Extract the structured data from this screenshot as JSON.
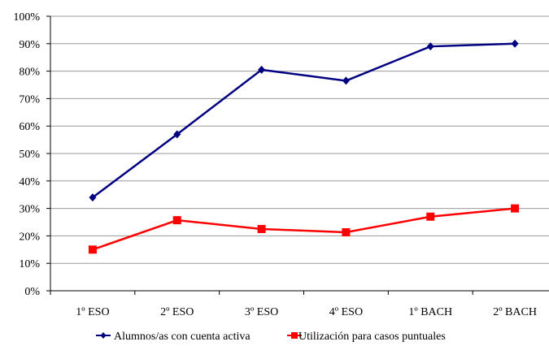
{
  "chart_data": {
    "type": "line",
    "categories": [
      "1º ESO",
      "2º ESO",
      "3º ESO",
      "4º ESO",
      "1º BACH",
      "2º BACH"
    ],
    "ylim": [
      0,
      100
    ],
    "y_ticks": [
      "0%",
      "10%",
      "20%",
      "30%",
      "40%",
      "50%",
      "60%",
      "70%",
      "80%",
      "90%",
      "100%"
    ],
    "y_unit": "%",
    "grid": "horizontal",
    "legend_position": "bottom",
    "series": [
      {
        "name": "Alumnos/as con cuenta activa",
        "values": [
          34,
          57,
          80.5,
          76.5,
          89,
          90
        ],
        "color": "#000080",
        "marker": "diamond"
      },
      {
        "name": "Utilización para casos puntuales",
        "values": [
          15,
          25.7,
          22.5,
          21.3,
          27,
          30
        ],
        "color": "#ff0000",
        "marker": "square"
      }
    ]
  }
}
